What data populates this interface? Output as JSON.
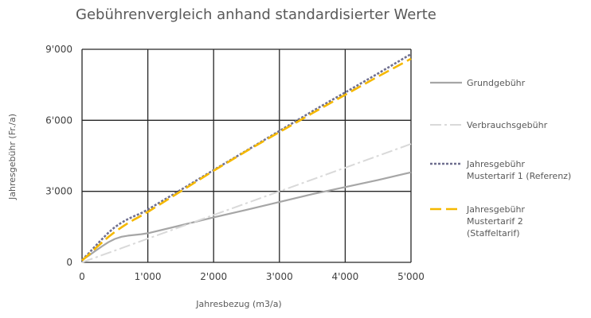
{
  "chart_data": {
    "type": "line",
    "title": "Gebührenvergleich anhand standardisierter Werte",
    "xlabel": "Jahresbezug (m3/a)",
    "ylabel": "Jahresgebühr (Fr./a)",
    "xlim": [
      0,
      5000
    ],
    "ylim": [
      0,
      9000
    ],
    "x_ticks": [
      0,
      1000,
      2000,
      3000,
      4000,
      5000
    ],
    "x_tick_labels": [
      "0",
      "1'000",
      "2'000",
      "3'000",
      "4'000",
      "5'000"
    ],
    "y_ticks": [
      0,
      3000,
      6000,
      9000
    ],
    "y_tick_labels": [
      "0",
      "3'000",
      "6'000",
      "9'000"
    ],
    "grid": true,
    "legend_position": "right",
    "series": [
      {
        "name": "Grundgebühr",
        "color": "#a6a6a6",
        "dash": "solid",
        "x": [
          0,
          100,
          200,
          300,
          400,
          500,
          600,
          700,
          800,
          900,
          1000,
          1500,
          2000,
          2500,
          3000,
          3500,
          4000,
          4500,
          5000
        ],
        "y": [
          100,
          280,
          480,
          670,
          850,
          990,
          1080,
          1130,
          1160,
          1190,
          1230,
          1560,
          1900,
          2220,
          2550,
          2880,
          3180,
          3480,
          3800
        ]
      },
      {
        "name": "Verbrauchsgebühr",
        "color": "#d9d9d9",
        "dash": "dashdot",
        "x": [
          0,
          1000,
          2000,
          3000,
          4000,
          5000
        ],
        "y": [
          0,
          1000,
          2000,
          3000,
          4000,
          5000
        ]
      },
      {
        "name": "Jahresgebühr Mustertarif 1 (Referenz)",
        "color": "#6f6f8f",
        "dash": "dotted",
        "x": [
          0,
          100,
          200,
          300,
          400,
          500,
          600,
          700,
          800,
          900,
          1000,
          1500,
          2000,
          2500,
          3000,
          3500,
          4000,
          4500,
          5000
        ],
        "y": [
          100,
          380,
          680,
          970,
          1250,
          1490,
          1680,
          1830,
          1960,
          2080,
          2230,
          3060,
          3900,
          4720,
          5550,
          6380,
          7180,
          7980,
          8800
        ]
      },
      {
        "name": "Jahresgebühr Mustertarif 2 (Staffeltarif)",
        "color": "#f5b800",
        "dash": "dashed",
        "x": [
          0,
          100,
          200,
          300,
          400,
          500,
          600,
          700,
          800,
          900,
          1000,
          1500,
          2000,
          2500,
          3000,
          3500,
          4000,
          4500,
          5000
        ],
        "y": [
          80,
          320,
          580,
          830,
          1070,
          1290,
          1480,
          1660,
          1820,
          1970,
          2130,
          3000,
          3870,
          4700,
          5500,
          6300,
          7080,
          7850,
          8600
        ]
      }
    ],
    "legend_lines": [
      [
        "Grundgebühr"
      ],
      [
        "Verbrauchsgebühr"
      ],
      [
        "Jahresgebühr",
        "Mustertarif 1 (Referenz)"
      ],
      [
        "Jahresgebühr",
        "Mustertarif 2",
        "(Staffeltarif)"
      ]
    ]
  }
}
